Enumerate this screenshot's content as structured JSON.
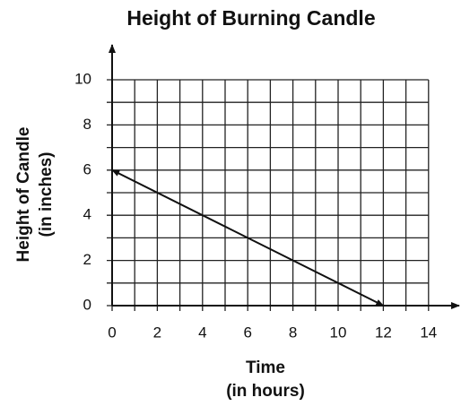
{
  "chart_data": {
    "type": "line",
    "title": "Height of Burning Candle",
    "xlabel": [
      "Time",
      "(in hours)"
    ],
    "ylabel": [
      "Height of Candle",
      "(in inches)"
    ],
    "x": [
      0,
      12
    ],
    "series": [
      {
        "name": null,
        "color": "#111111",
        "values": [
          6,
          0
        ]
      }
    ],
    "xlim": [
      0,
      14
    ],
    "ylim": [
      0,
      10
    ],
    "xticks": [
      0,
      2,
      4,
      6,
      8,
      10,
      12,
      14
    ],
    "yticks": [
      0,
      2,
      4,
      6,
      8,
      10
    ],
    "xminor_ticks": [
      1,
      3,
      5,
      7,
      9,
      11,
      13
    ],
    "yminor_ticks": [
      1,
      3,
      5,
      7,
      9
    ],
    "grid": true
  }
}
